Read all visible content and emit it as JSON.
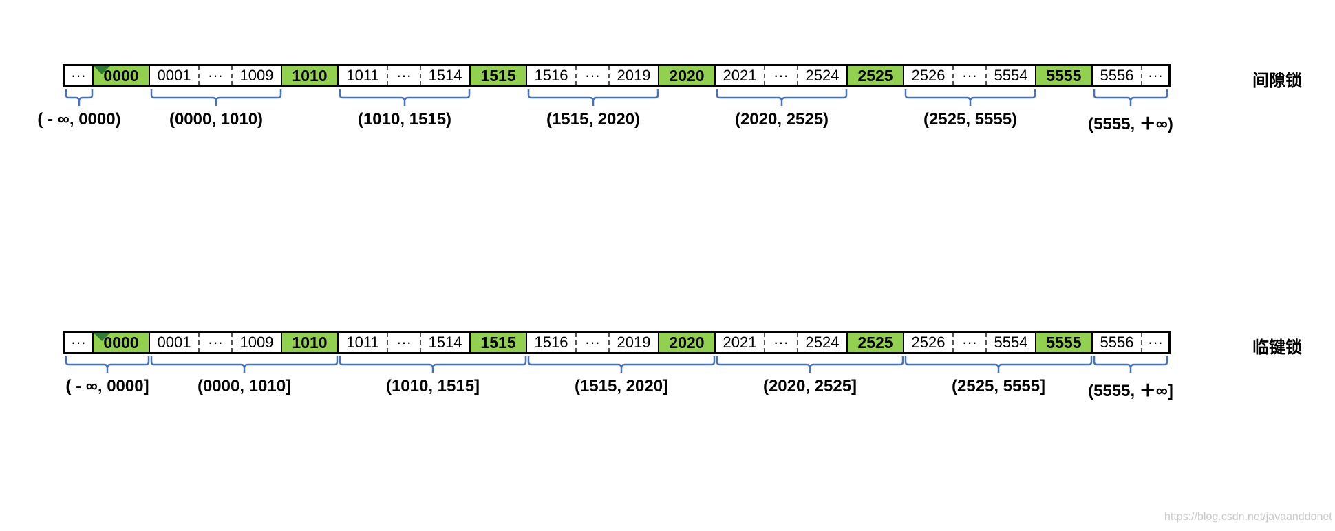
{
  "cells": [
    "···",
    "0000",
    "0001",
    "···",
    "1009",
    "1010",
    "1011",
    "···",
    "1514",
    "1515",
    "1516",
    "···",
    "2019",
    "2020",
    "2021",
    "···",
    "2524",
    "2525",
    "2526",
    "···",
    "5554",
    "5555",
    "5556",
    "···"
  ],
  "gap_lock": {
    "title": "间隙锁",
    "ranges": [
      "( - ∞, 0000)",
      "(0000, 1010)",
      "(1010, 1515)",
      "(1515, 2020)",
      "(2020, 2525)",
      "(2525, 5555)",
      "(5555, ＋∞)"
    ]
  },
  "next_key_lock": {
    "title": "临键锁",
    "ranges": [
      "( - ∞, 0000]",
      "(0000, 1010]",
      "(1010, 1515]",
      "(1515, 2020]",
      "(2020, 2525]",
      "(2525, 5555]",
      "(5555, ＋∞]"
    ]
  },
  "watermark": "https://blog.csdn.net/javaanddonet",
  "colors": {
    "key_fill": "#92d050",
    "brace": "#4472c4",
    "corner_mark": "#2e7d32"
  }
}
